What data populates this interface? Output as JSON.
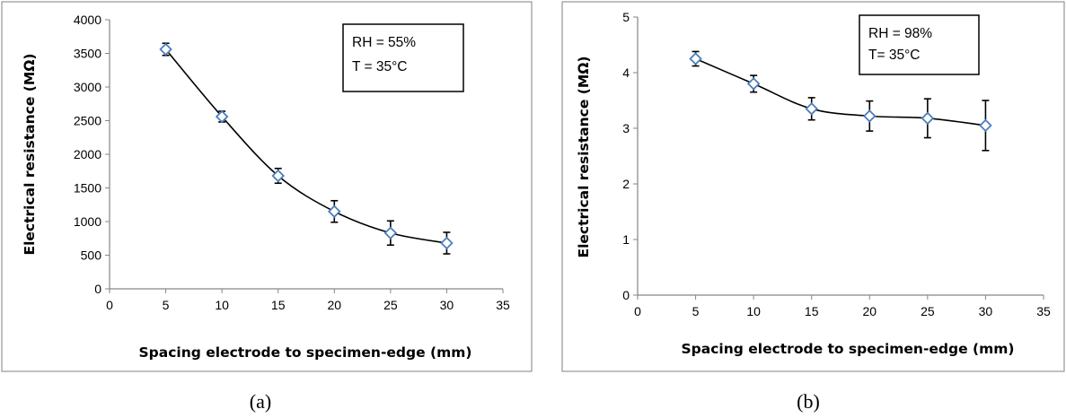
{
  "chart_data": [
    {
      "panel_label": "(a)",
      "type": "line",
      "xlabel": "Spacing electrode to specimen-edge (mm)",
      "ylabel": "Electrical resistance  (MΩ)",
      "xlim": [
        0,
        35
      ],
      "ylim": [
        0,
        4000
      ],
      "x_ticks": [
        "0",
        "5",
        "10",
        "15",
        "20",
        "25",
        "30",
        "35"
      ],
      "y_ticks": [
        "0",
        "500",
        "1000",
        "1500",
        "2000",
        "2500",
        "3000",
        "3500",
        "4000"
      ],
      "grid": false,
      "legend_box": {
        "placement": "top-right",
        "lines": [
          "RH = 55%",
          "T = 35°C"
        ]
      },
      "series": [
        {
          "x": [
            5,
            10,
            15,
            20,
            25,
            30
          ],
          "y": [
            3560,
            2560,
            1680,
            1150,
            830,
            680
          ],
          "error": [
            90,
            80,
            110,
            160,
            180,
            160
          ],
          "marker": "diamond",
          "marker_color": "#4a7ebb",
          "line_color": "#000000"
        }
      ]
    },
    {
      "panel_label": "(b)",
      "type": "line",
      "xlabel": "Spacing electrode to specimen-edge (mm)",
      "ylabel": "Electrical resistance (MΩ)",
      "xlim": [
        0,
        35
      ],
      "ylim": [
        0,
        5
      ],
      "x_ticks": [
        "0",
        "5",
        "10",
        "15",
        "20",
        "25",
        "30",
        "35"
      ],
      "y_ticks": [
        "0",
        "1",
        "2",
        "3",
        "4",
        "5"
      ],
      "grid": false,
      "legend_box": {
        "placement": "top-right",
        "lines": [
          "RH = 98%",
          "T= 35°C"
        ]
      },
      "series": [
        {
          "x": [
            5,
            10,
            15,
            20,
            25,
            30
          ],
          "y": [
            4.25,
            3.8,
            3.35,
            3.22,
            3.18,
            3.05
          ],
          "error": [
            0.13,
            0.15,
            0.2,
            0.27,
            0.35,
            0.45
          ],
          "marker": "diamond",
          "marker_color": "#4a7ebb",
          "line_color": "#000000"
        }
      ]
    }
  ]
}
